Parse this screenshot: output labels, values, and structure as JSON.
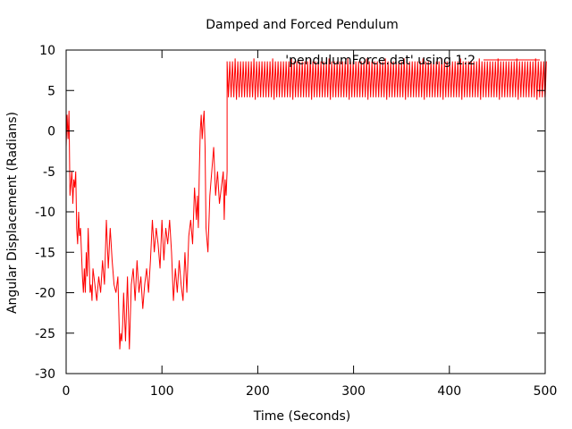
{
  "chart_data": {
    "type": "line",
    "title": "Damped and Forced Pendulum",
    "xlabel": "Time (Seconds)",
    "ylabel": "Angular Displacement (Radians)",
    "xlim": [
      0,
      500
    ],
    "ylim": [
      -30,
      10
    ],
    "xticks": [
      0,
      100,
      200,
      300,
      400,
      500
    ],
    "yticks": [
      -30,
      -25,
      -20,
      -15,
      -10,
      -5,
      0,
      5,
      10
    ],
    "grid": false,
    "legend": "top-right",
    "series": [
      {
        "name": "'pendulumForce.dat' using 1:2",
        "color": "#ff0000",
        "x": [
          0,
          1,
          2,
          3,
          4,
          6,
          7,
          8,
          9,
          10,
          11,
          12,
          13,
          14,
          15,
          17,
          18,
          19,
          20,
          21,
          22,
          23,
          24,
          25,
          26,
          27,
          28,
          30,
          32,
          34,
          36,
          38,
          40,
          42,
          44,
          46,
          48,
          50,
          52,
          54,
          56,
          57,
          58,
          59,
          60,
          62,
          64,
          66,
          68,
          70,
          72,
          74,
          76,
          78,
          80,
          82,
          84,
          86,
          88,
          90,
          92,
          94,
          96,
          98,
          100,
          102,
          104,
          106,
          108,
          110,
          112,
          114,
          116,
          118,
          120,
          122,
          124,
          126,
          128,
          130,
          132,
          134,
          136,
          137,
          138,
          139,
          140,
          141,
          142,
          143,
          144,
          145,
          146,
          148,
          150,
          152,
          154,
          156,
          158,
          160,
          162,
          164,
          165,
          166,
          167,
          168
        ],
        "y": [
          -2,
          2,
          -1,
          2.5,
          -8,
          -5,
          -9,
          -6,
          -7,
          -5,
          -12,
          -14,
          -10,
          -13,
          -12,
          -18,
          -20,
          -17,
          -20,
          -15,
          -18,
          -12,
          -16,
          -20,
          -19,
          -21,
          -17,
          -19,
          -21,
          -18,
          -20,
          -16,
          -19,
          -11,
          -17,
          -12,
          -16,
          -19,
          -20,
          -18,
          -27,
          -25,
          -26,
          -24,
          -20,
          -26,
          -18,
          -27,
          -19,
          -17,
          -21,
          -16,
          -20,
          -18,
          -22,
          -19,
          -17,
          -20,
          -16,
          -11,
          -15,
          -12,
          -14,
          -17,
          -11,
          -16,
          -12,
          -14,
          -11,
          -15,
          -21,
          -17,
          -20,
          -16,
          -19,
          -21,
          -15,
          -20,
          -13,
          -11,
          -14,
          -7,
          -11,
          -8,
          -12,
          -5,
          0,
          2,
          -1,
          1,
          2.5,
          -2,
          -12,
          -15,
          -8,
          -5,
          -2,
          -8,
          -5,
          -9,
          -7,
          -5,
          -11,
          -6,
          -8,
          -5
        ]
      }
    ],
    "steady_state": {
      "t_start": 168,
      "t_end": 500,
      "center": 6.2,
      "amplitude": 2.4,
      "period_seconds": 2.8
    }
  }
}
